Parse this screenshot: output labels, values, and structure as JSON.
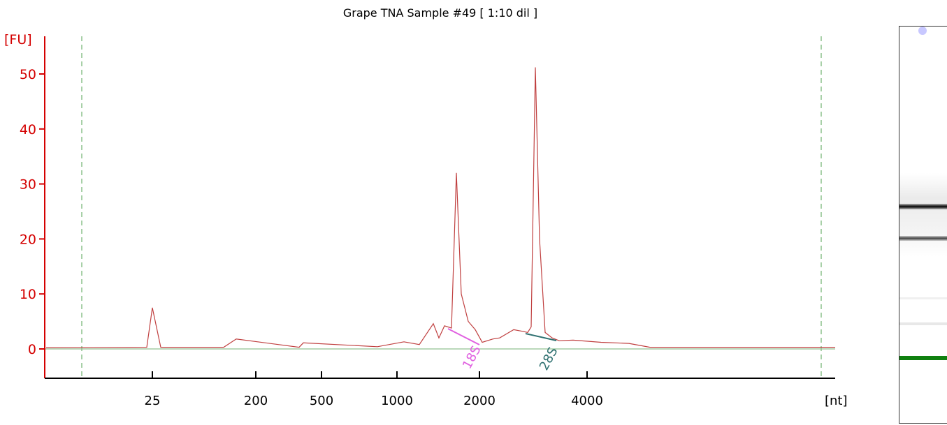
{
  "chart_data": {
    "type": "line",
    "title": "Grape TNA Sample #49  [ 1:10 dil ]",
    "ylabel": "[FU]",
    "xlabel": "[nt]",
    "y_ticks": [
      "50",
      "40",
      "30",
      "20",
      "10",
      "0"
    ],
    "y_tick_values": [
      50,
      40,
      30,
      20,
      10,
      0
    ],
    "x_ticks": [
      "25",
      "200",
      "500",
      "1000",
      "2000",
      "4000"
    ],
    "ylim": [
      -5.5,
      57
    ],
    "x_scale": "size ladder (non-linear)",
    "series": [
      {
        "color": "#c04040",
        "x_nt": [
          25,
          25,
          25,
          25,
          200,
          200,
          500,
          500,
          1000,
          1000,
          1000,
          1500,
          1500,
          1500,
          1700,
          1700,
          1700,
          1700,
          1700,
          2000,
          2000,
          2000,
          2500,
          2500,
          3000,
          3000,
          3000,
          3000,
          3200,
          3200,
          3200,
          3500,
          3500,
          4000,
          4000
        ],
        "values": [
          0.2,
          0.3,
          7.5,
          0.3,
          0.3,
          1.8,
          0.3,
          1.1,
          0.4,
          1.3,
          0.8,
          4.6,
          2.0,
          4.2,
          3.8,
          32.0,
          10.0,
          5.0,
          3.5,
          1.2,
          1.8,
          2.0,
          3.5,
          3.2,
          3.0,
          4.0,
          51.2,
          20.0,
          3.0,
          2.0,
          1.5,
          1.6,
          1.2,
          1.0,
          0.3
        ]
      }
    ],
    "annotations": [
      {
        "text": "18S",
        "color": "#e060e0"
      },
      {
        "text": "28S",
        "color": "#2e7070"
      }
    ],
    "baseline_color": "#90c090",
    "marker_lines": "dashed green vertical lines at lower and upper marker positions"
  },
  "gel_lane": {
    "bands": [
      "lower marker (green)",
      "18S band",
      "28S band",
      "upper marker (light blue dot)"
    ]
  }
}
